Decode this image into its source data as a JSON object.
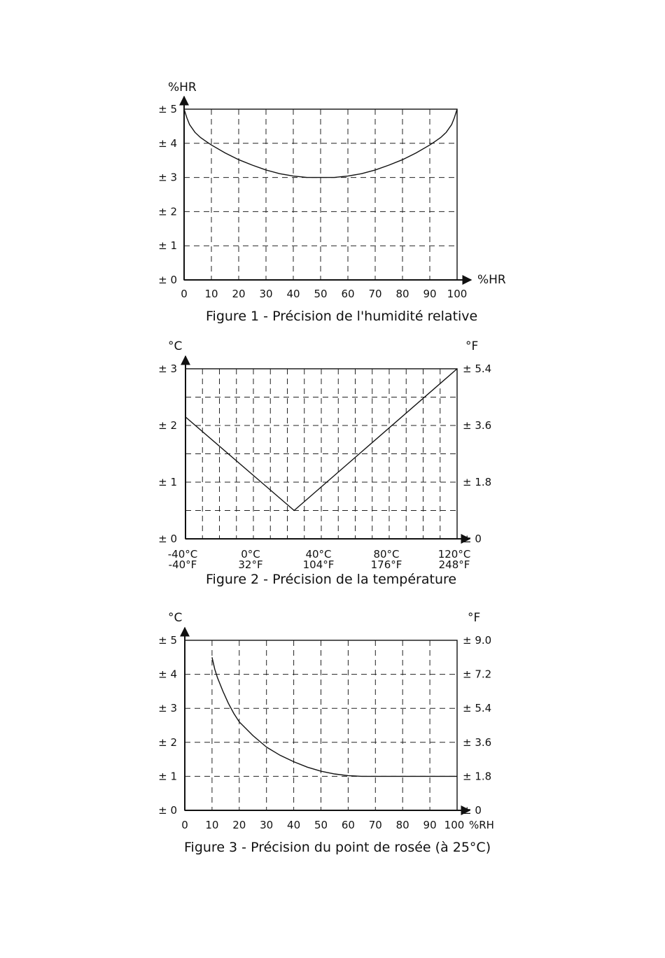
{
  "chart_data": [
    {
      "type": "line",
      "title": "Figure 1 - Précision de l'humidité relative",
      "ylabel": "%HR",
      "xlabel": "%HR",
      "xlim": [
        0,
        100
      ],
      "ylim": [
        0,
        5
      ],
      "x_ticks": [
        "0",
        "10",
        "20",
        "30",
        "40",
        "50",
        "60",
        "70",
        "80",
        "90",
        "100"
      ],
      "y_ticks": [
        "± 0",
        "± 1",
        "± 2",
        "± 3",
        "± 4",
        "± 5"
      ],
      "grid": true,
      "series": [
        {
          "x": [
            0,
            1,
            2,
            4,
            6,
            8,
            10,
            15,
            20,
            25,
            30,
            35,
            40,
            45,
            50,
            55,
            60,
            65,
            70,
            75,
            80,
            85,
            90,
            92,
            94,
            96,
            98,
            99,
            100
          ],
          "y": [
            5.0,
            4.75,
            4.55,
            4.32,
            4.17,
            4.06,
            3.95,
            3.72,
            3.52,
            3.36,
            3.22,
            3.11,
            3.04,
            3.0,
            3.0,
            3.0,
            3.04,
            3.11,
            3.22,
            3.36,
            3.52,
            3.72,
            3.95,
            4.06,
            4.17,
            4.32,
            4.55,
            4.75,
            5.0
          ]
        }
      ]
    },
    {
      "type": "line",
      "title": "Figure 2 - Précision de la température",
      "ylabel_left": "°C",
      "ylabel_right": "°F",
      "xlim": [
        -40,
        120
      ],
      "ylim": [
        0,
        3
      ],
      "x_ticks": [
        {
          "c": "-40°C",
          "f": "-40°F"
        },
        {
          "c": "0°C",
          "f": "32°F"
        },
        {
          "c": "40°C",
          "f": "104°F"
        },
        {
          "c": "80°C",
          "f": "176°F"
        },
        {
          "c": "120°C",
          "f": "248°F"
        }
      ],
      "y_ticks_left": [
        "± 0",
        "± 1",
        "± 2",
        "± 3"
      ],
      "y_ticks_right": [
        "± 0",
        "± 1.8",
        "± 3.6",
        "± 5.4"
      ],
      "grid": true,
      "series": [
        {
          "x": [
            -40,
            24,
            120
          ],
          "y": [
            2.15,
            0.5,
            3.0
          ]
        }
      ]
    },
    {
      "type": "line",
      "title": "Figure 3 - Précision du point de rosée (à 25°C)",
      "ylabel_left": "°C",
      "ylabel_right": "°F",
      "xlabel": "%RH",
      "xlim": [
        0,
        100
      ],
      "ylim": [
        0,
        5
      ],
      "x_ticks": [
        "0",
        "10",
        "20",
        "30",
        "40",
        "50",
        "60",
        "70",
        "80",
        "90",
        "100"
      ],
      "y_ticks_left": [
        "± 0",
        "± 1",
        "± 2",
        "± 3",
        "± 4",
        "± 5"
      ],
      "y_ticks_right": [
        "± 0",
        "± 1.8",
        "± 3.6",
        "± 5.4",
        "± 7.2",
        "± 9.0"
      ],
      "grid": true,
      "series": [
        {
          "x": [
            10,
            11,
            12,
            14,
            16,
            18,
            20,
            25,
            30,
            35,
            40,
            45,
            50,
            55,
            60,
            65,
            70,
            80,
            90,
            100
          ],
          "y": [
            4.5,
            4.15,
            3.9,
            3.5,
            3.15,
            2.85,
            2.6,
            2.2,
            1.86,
            1.62,
            1.43,
            1.27,
            1.15,
            1.07,
            1.02,
            1.0,
            1.0,
            1.0,
            1.0,
            1.0
          ]
        }
      ]
    }
  ]
}
